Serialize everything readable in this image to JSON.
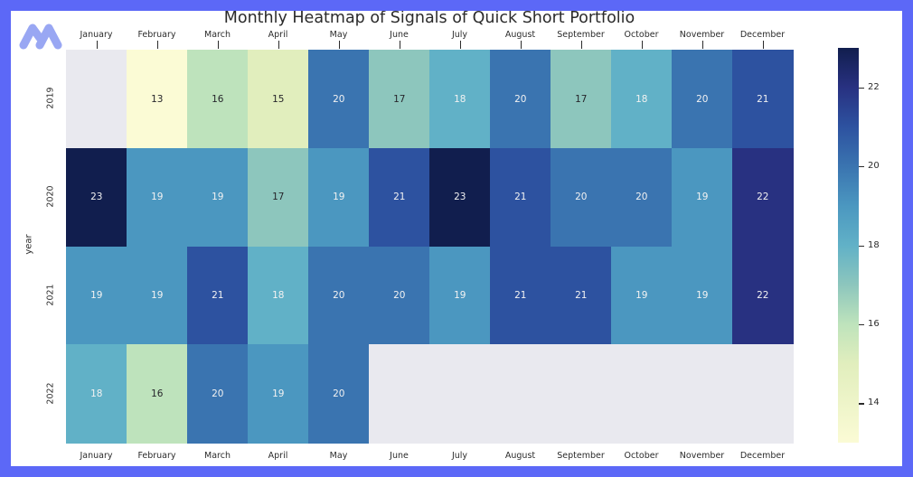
{
  "frame": {
    "border_color": "#5c68f7",
    "background_color": "#ffffff"
  },
  "logo": {
    "name": "brand-logo",
    "color": "#99a7f3"
  },
  "chart_data": {
    "type": "heatmap",
    "title": "Monthly Heatmap of Signals of Quick Short Portfolio",
    "xlabel": "",
    "ylabel": "year",
    "x_categories": [
      "January",
      "February",
      "March",
      "April",
      "May",
      "June",
      "July",
      "August",
      "September",
      "October",
      "November",
      "December"
    ],
    "y_categories": [
      "2019",
      "2020",
      "2021",
      "2022"
    ],
    "values": [
      [
        null,
        13,
        16,
        15,
        20,
        17,
        18,
        20,
        17,
        18,
        20,
        21
      ],
      [
        23,
        19,
        19,
        17,
        19,
        21,
        23,
        21,
        20,
        20,
        19,
        22
      ],
      [
        19,
        19,
        21,
        18,
        20,
        20,
        19,
        21,
        21,
        19,
        19,
        22
      ],
      [
        18,
        16,
        20,
        19,
        20,
        null,
        null,
        null,
        null,
        null,
        null,
        null
      ]
    ],
    "vmin": 13,
    "vmax": 23,
    "colormap_name": "YlGnBu",
    "colorbar_ticks": [
      22,
      20,
      18,
      16,
      14
    ],
    "value_colors": {
      "13": "#fbfbd5",
      "15": "#e1eebd",
      "16": "#bee3bc",
      "17": "#8dc6bd",
      "18": "#61b1c7",
      "19": "#4b97c0",
      "20": "#3a74b0",
      "21": "#2d52a0",
      "22": "#283181",
      "23": "#111e4e"
    },
    "missing_color": "#e9e9ef",
    "annotation_text_light": "#f2f2f2",
    "annotation_text_dark": "#26262b",
    "axis_text_color": "#2b2b2b",
    "legend_position": "right",
    "grid": false
  }
}
